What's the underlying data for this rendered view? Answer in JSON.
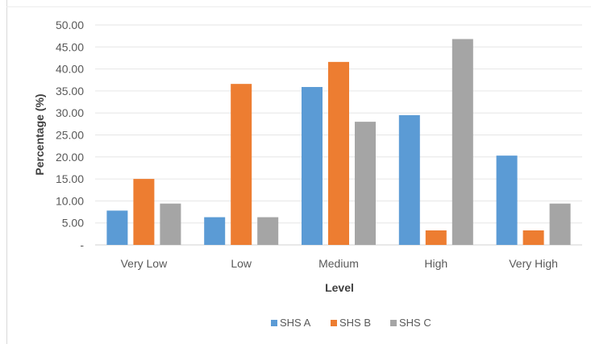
{
  "chart_data": {
    "type": "bar",
    "title": "",
    "xlabel": "Level",
    "ylabel": "Percentage (%)",
    "categories": [
      "Very Low",
      "Low",
      "Medium",
      "High",
      "Very High"
    ],
    "series": [
      {
        "name": "SHS A",
        "color": "#5B9BD5",
        "values": [
          7.8,
          6.3,
          35.9,
          29.5,
          20.3
        ]
      },
      {
        "name": "SHS B",
        "color": "#ED7D31",
        "values": [
          15.0,
          36.6,
          41.6,
          3.3,
          3.3
        ]
      },
      {
        "name": "SHS C",
        "color": "#A5A5A5",
        "values": [
          9.4,
          6.3,
          28.0,
          46.8,
          9.4
        ]
      }
    ],
    "ylim": [
      0,
      50
    ],
    "yticks": [
      "-",
      "5.00",
      "10.00",
      "15.00",
      "20.00",
      "25.00",
      "30.00",
      "35.00",
      "40.00",
      "45.00",
      "50.00"
    ],
    "grid": true,
    "legend_position": "bottom"
  }
}
